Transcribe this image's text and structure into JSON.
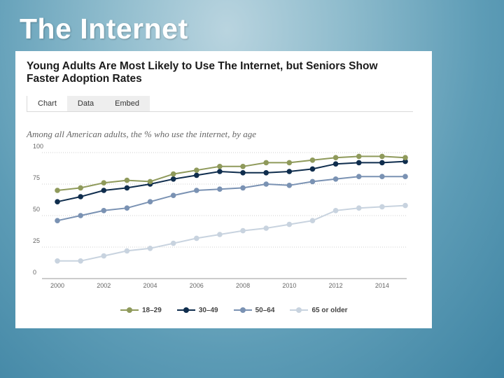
{
  "slide": {
    "title": "The Internet"
  },
  "card": {
    "heading_line1": "Young Adults Are Most Likely to Use The Internet, but Seniors Show",
    "heading_line2": "Faster Adoption Rates",
    "tabs": [
      {
        "label": "Chart"
      },
      {
        "label": "Data"
      },
      {
        "label": "Embed"
      }
    ],
    "subtitle": "Among all American adults, the % who use the internet, by age"
  },
  "chart_data": {
    "type": "line",
    "title": "Among all American adults, the % who use the internet, by age",
    "xlabel": "",
    "ylabel": "",
    "x": [
      2000,
      2001,
      2002,
      2003,
      2004,
      2005,
      2006,
      2007,
      2008,
      2009,
      2010,
      2011,
      2012,
      2013,
      2014,
      2015
    ],
    "xlim": [
      2000,
      2015
    ],
    "ylim": [
      0,
      100
    ],
    "x_ticks": [
      "2000",
      "2002",
      "2004",
      "2006",
      "2008",
      "2010",
      "2012",
      "2014"
    ],
    "y_ticks": [
      "0",
      "25",
      "50",
      "75",
      "100"
    ],
    "legend_position": "bottom",
    "grid": true,
    "series": [
      {
        "name": "18–29",
        "color": "#8f9a5b",
        "values": [
          70,
          72,
          76,
          78,
          77,
          83,
          86,
          89,
          89,
          92,
          92,
          94,
          96,
          97,
          97,
          96
        ]
      },
      {
        "name": "30–49",
        "color": "#0f2d4d",
        "values": [
          61,
          65,
          70,
          72,
          75,
          79,
          82,
          85,
          84,
          84,
          85,
          87,
          91,
          92,
          92,
          93
        ]
      },
      {
        "name": "50–64",
        "color": "#7a92b3",
        "values": [
          46,
          50,
          54,
          56,
          61,
          66,
          70,
          71,
          72,
          75,
          74,
          77,
          79,
          81,
          81,
          81
        ]
      },
      {
        "name": "65 or older",
        "color": "#c8d3df",
        "values": [
          14,
          14,
          18,
          22,
          24,
          28,
          32,
          35,
          38,
          40,
          43,
          46,
          54,
          56,
          57,
          58
        ]
      }
    ]
  }
}
